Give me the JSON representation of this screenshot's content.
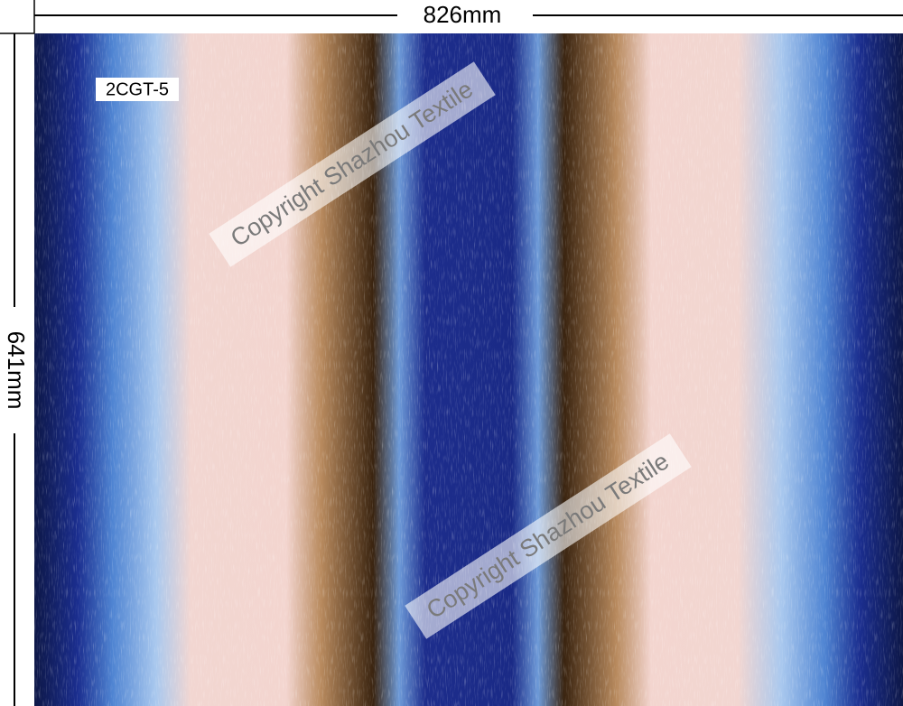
{
  "dimensions": {
    "width": "826mm",
    "height": "641mm"
  },
  "design_code": "2CGT-5",
  "watermarks": [
    "Copyright Shazhou Textile",
    "Copyright Shazhou Textile"
  ]
}
